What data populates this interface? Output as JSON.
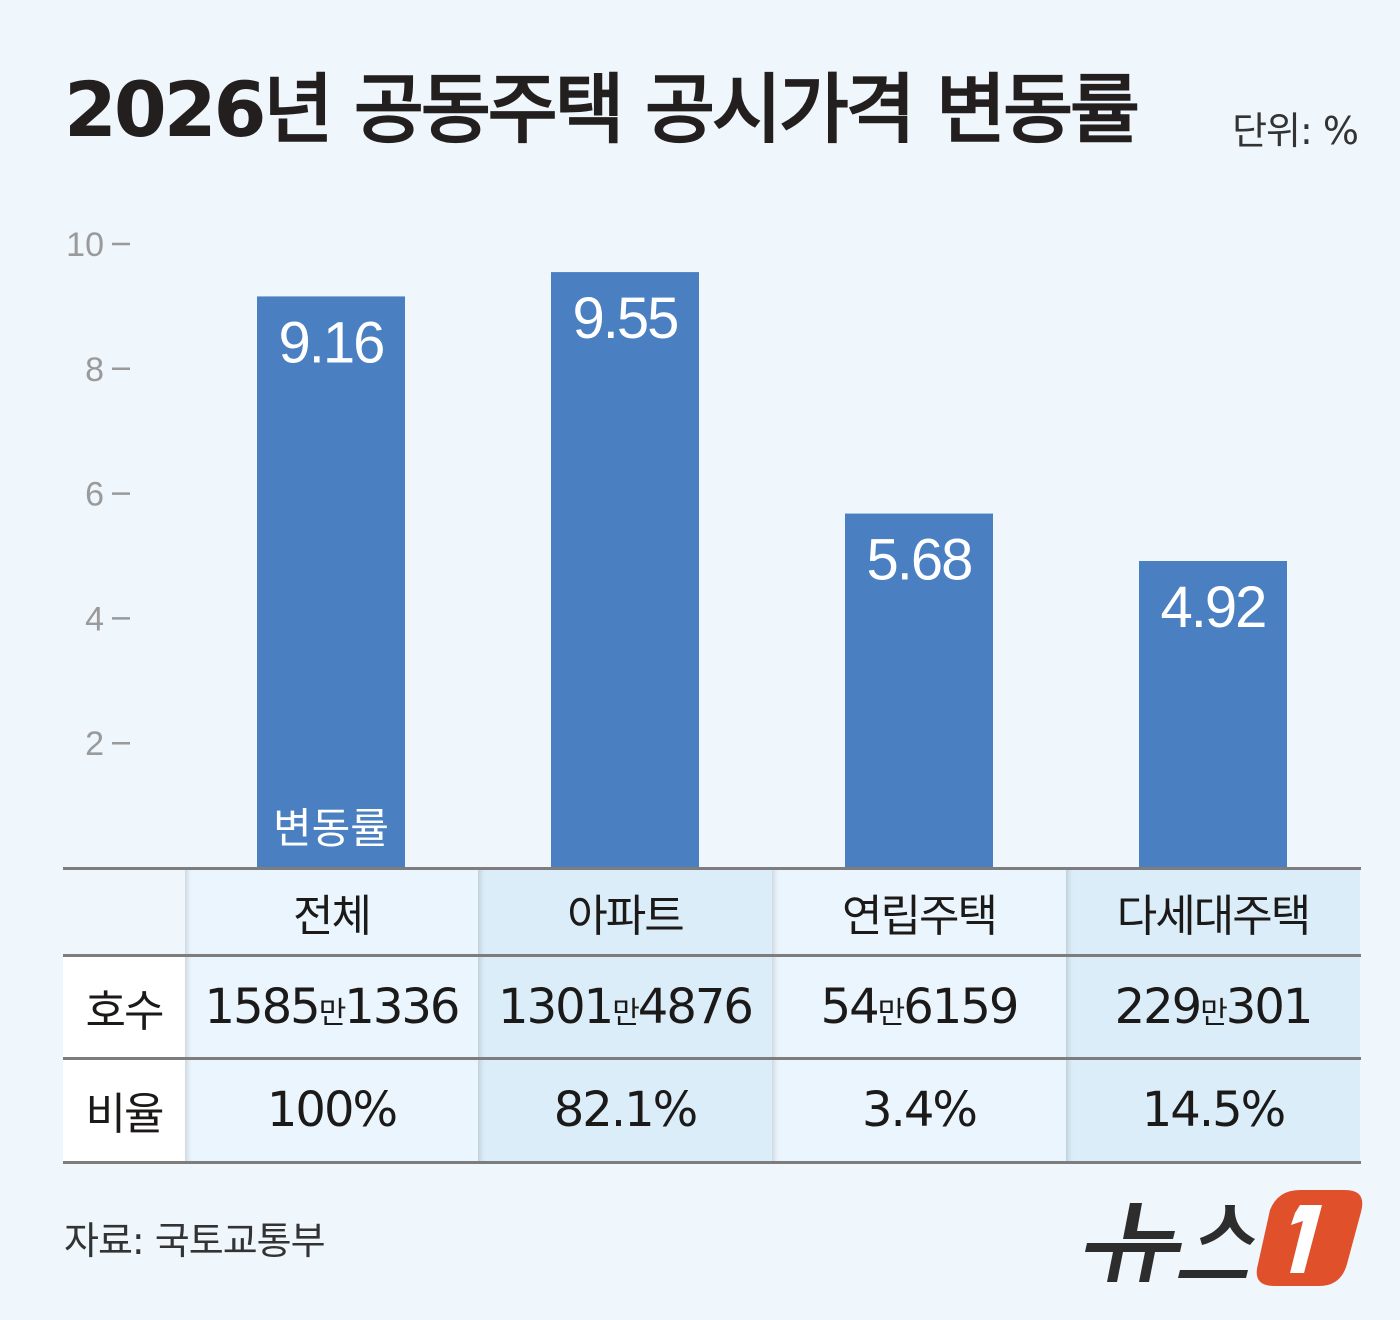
{
  "title": "2026년 공동주택 공시가격 변동률",
  "unit": "단위: %",
  "chart_data": {
    "type": "bar",
    "title": "2026년 공동주택 공시가격 변동률",
    "categories": [
      "전체",
      "아파트",
      "연립주택",
      "다세대주택"
    ],
    "series": [
      {
        "name": "변동률",
        "values": [
          9.16,
          9.55,
          5.68,
          4.92
        ]
      }
    ],
    "ylim": [
      0,
      10
    ],
    "yticks": [
      2,
      4,
      6,
      8,
      10
    ],
    "bar_color": "#4a80c1",
    "grid": false
  },
  "table": {
    "row_labels": [
      "호수",
      "비율"
    ],
    "counts": [
      {
        "a": "1585",
        "man": "만",
        "b": "1336"
      },
      {
        "a": "1301",
        "man": "만",
        "b": "4876"
      },
      {
        "a": "54",
        "man": "만",
        "b": "6159"
      },
      {
        "a": "229",
        "man": "만",
        "b": "301"
      }
    ],
    "ratios": [
      "100%",
      "82.1%",
      "3.4%",
      "14.5%"
    ]
  },
  "source": "자료: 국토교통부",
  "logo": {
    "text": "뉴스1",
    "color": "#e0502a"
  }
}
